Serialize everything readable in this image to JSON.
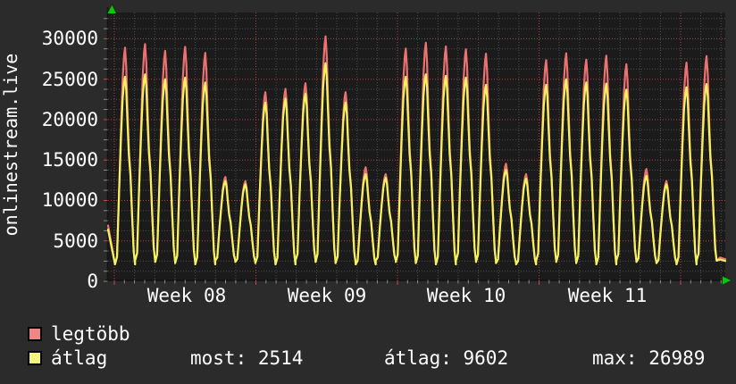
{
  "site": {
    "vertical_title": "onlinestream.live"
  },
  "chart_data": {
    "type": "line",
    "title": "",
    "ylabel": "onlinestream.live",
    "xlabel": "",
    "grid": true,
    "legend_position": "bottom-left",
    "ylim": [
      0,
      33000
    ],
    "y_ticks": [
      0,
      5000,
      10000,
      15000,
      20000,
      25000,
      30000
    ],
    "x_week_labels": [
      "Week 08",
      "Week 09",
      "Week 10",
      "Week 11"
    ],
    "series_names": [
      "legtöbb",
      "átlag"
    ],
    "series_colors": {
      "legtobb": "#ec7272",
      "atlag": "#f3f35e"
    },
    "days": [
      {
        "max": 28900,
        "avg": 25300
      },
      {
        "max": 29350,
        "avg": 25600
      },
      {
        "max": 28500,
        "avg": 25000
      },
      {
        "max": 29000,
        "avg": 25200
      },
      {
        "max": 28250,
        "avg": 24600
      },
      {
        "max": 12900,
        "avg": 12400
      },
      {
        "max": 12400,
        "avg": 12000
      },
      {
        "max": 23400,
        "avg": 22100
      },
      {
        "max": 23800,
        "avg": 22600
      },
      {
        "max": 24500,
        "avg": 23200
      },
      {
        "max": 30300,
        "avg": 26989
      },
      {
        "max": 23400,
        "avg": 22100
      },
      {
        "max": 14100,
        "avg": 13250
      },
      {
        "max": 13250,
        "avg": 12800
      },
      {
        "max": 28800,
        "avg": 25300
      },
      {
        "max": 29500,
        "avg": 25600
      },
      {
        "max": 29050,
        "avg": 25400
      },
      {
        "max": 28700,
        "avg": 25200
      },
      {
        "max": 28150,
        "avg": 24300
      },
      {
        "max": 14550,
        "avg": 13800
      },
      {
        "max": 13250,
        "avg": 12700
      },
      {
        "max": 27350,
        "avg": 24300
      },
      {
        "max": 28200,
        "avg": 25000
      },
      {
        "max": 27400,
        "avg": 24600
      },
      {
        "max": 27900,
        "avg": 24450
      },
      {
        "max": 26850,
        "avg": 23700
      },
      {
        "max": 13900,
        "avg": 13050
      },
      {
        "max": 12400,
        "avg": 12000
      },
      {
        "max": 27050,
        "avg": 24000
      },
      {
        "max": 27850,
        "avg": 24400
      }
    ],
    "start_value": 6400,
    "end_value": 2514,
    "colors": {
      "plot_bg": "#1b1b1b",
      "outer_bg": "#2b2b2b",
      "grid_minor": "#4d4d4d",
      "grid_major": "#b04040",
      "arrow_green": "#00cc00",
      "text": "#ffffff"
    }
  },
  "legend": [
    {
      "label": "legtöbb",
      "color": "#ef8585"
    },
    {
      "label": "átlag",
      "color": "#f5f57d"
    }
  ],
  "stats": {
    "most_label": "most:",
    "most_value": "2514",
    "atlag_label": "átlag:",
    "atlag_value": "9602",
    "max_label": "max:",
    "max_value": "26989"
  }
}
